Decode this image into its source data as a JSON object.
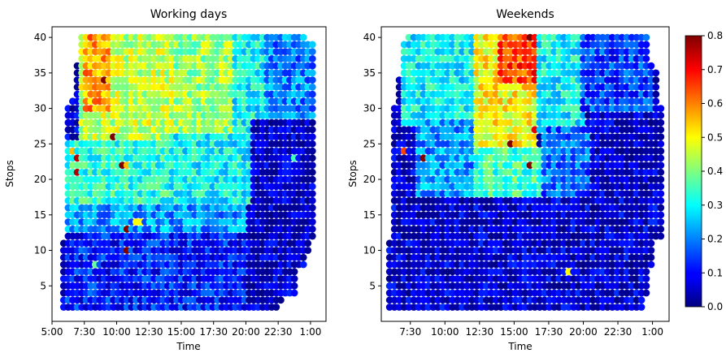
{
  "chart_data": [
    {
      "type": "scatter",
      "title": "Working days",
      "xlabel": "Time",
      "ylabel": "Stops",
      "x_ticks": [
        "5:00",
        "7:30",
        "10:00",
        "12:30",
        "15:00",
        "17:30",
        "20:00",
        "22:30",
        "1:00"
      ],
      "x_tick_hours": [
        5,
        7.5,
        10,
        12.5,
        15,
        17.5,
        20,
        22.5,
        25
      ],
      "xlim_hours": [
        5,
        26.2
      ],
      "y_ticks": [
        5,
        10,
        15,
        20,
        25,
        30,
        35,
        40
      ],
      "ylim": [
        0,
        41.5
      ],
      "point_grid": {
        "time_step_minutes": 30,
        "stop_step": 1
      },
      "columns": [
        {
          "t": 5.9,
          "stops": [
            2,
            11
          ]
        },
        {
          "t": 6.25,
          "stops": [
            2,
            30
          ]
        },
        {
          "t": 6.6,
          "stops": [
            2,
            31
          ]
        },
        {
          "t": 6.95,
          "stops": [
            2,
            36
          ]
        },
        {
          "t": 7.3,
          "stops": [
            2,
            40
          ]
        },
        {
          "t": 7.65,
          "stops": [
            2,
            40
          ]
        },
        {
          "t": 8.0,
          "stops": [
            2,
            40
          ]
        },
        {
          "t": 8.35,
          "stops": [
            2,
            40
          ]
        },
        {
          "t": 8.7,
          "stops": [
            2,
            40
          ]
        },
        {
          "t": 9.05,
          "stops": [
            2,
            40
          ]
        },
        {
          "t": 9.4,
          "stops": [
            2,
            40
          ]
        },
        {
          "t": 9.75,
          "stops": [
            2,
            40
          ]
        },
        {
          "t": 10.1,
          "stops": [
            2,
            40
          ]
        },
        {
          "t": 10.45,
          "stops": [
            2,
            40
          ]
        },
        {
          "t": 10.8,
          "stops": [
            2,
            40
          ]
        },
        {
          "t": 11.15,
          "stops": [
            2,
            40
          ]
        },
        {
          "t": 11.5,
          "stops": [
            2,
            40
          ]
        },
        {
          "t": 11.85,
          "stops": [
            2,
            40
          ]
        },
        {
          "t": 12.2,
          "stops": [
            2,
            40
          ]
        },
        {
          "t": 12.55,
          "stops": [
            2,
            40
          ]
        },
        {
          "t": 12.9,
          "stops": [
            2,
            40
          ]
        },
        {
          "t": 13.25,
          "stops": [
            2,
            40
          ]
        },
        {
          "t": 13.6,
          "stops": [
            2,
            40
          ]
        },
        {
          "t": 13.95,
          "stops": [
            2,
            40
          ]
        },
        {
          "t": 14.3,
          "stops": [
            2,
            40
          ]
        },
        {
          "t": 14.65,
          "stops": [
            2,
            40
          ]
        },
        {
          "t": 15.0,
          "stops": [
            2,
            40
          ]
        },
        {
          "t": 15.35,
          "stops": [
            2,
            40
          ]
        },
        {
          "t": 15.7,
          "stops": [
            2,
            40
          ]
        },
        {
          "t": 16.05,
          "stops": [
            2,
            40
          ]
        },
        {
          "t": 16.4,
          "stops": [
            2,
            40
          ]
        },
        {
          "t": 16.75,
          "stops": [
            2,
            40
          ]
        },
        {
          "t": 17.1,
          "stops": [
            2,
            40
          ]
        },
        {
          "t": 17.45,
          "stops": [
            2,
            40
          ]
        },
        {
          "t": 17.8,
          "stops": [
            2,
            40
          ]
        },
        {
          "t": 18.15,
          "stops": [
            2,
            40
          ]
        },
        {
          "t": 18.5,
          "stops": [
            2,
            40
          ]
        },
        {
          "t": 18.85,
          "stops": [
            2,
            40
          ]
        },
        {
          "t": 19.2,
          "stops": [
            2,
            40
          ]
        },
        {
          "t": 19.55,
          "stops": [
            2,
            40
          ]
        },
        {
          "t": 19.9,
          "stops": [
            2,
            40
          ]
        },
        {
          "t": 20.25,
          "stops": [
            2,
            40
          ]
        },
        {
          "t": 20.6,
          "stops": [
            2,
            40
          ]
        },
        {
          "t": 20.95,
          "stops": [
            2,
            40
          ]
        },
        {
          "t": 21.3,
          "stops": [
            2,
            40
          ]
        },
        {
          "t": 21.65,
          "stops": [
            2,
            40
          ]
        },
        {
          "t": 22.0,
          "stops": [
            2,
            40
          ]
        },
        {
          "t": 22.35,
          "stops": [
            2,
            40
          ]
        },
        {
          "t": 22.7,
          "stops": [
            3,
            40
          ]
        },
        {
          "t": 23.05,
          "stops": [
            4,
            40
          ]
        },
        {
          "t": 23.4,
          "stops": [
            4,
            40
          ]
        },
        {
          "t": 23.75,
          "stops": [
            4,
            40
          ]
        },
        {
          "t": 24.1,
          "stops": [
            8,
            40
          ]
        },
        {
          "t": 24.45,
          "stops": [
            8,
            40
          ]
        },
        {
          "t": 24.8,
          "stops": [
            10,
            39
          ]
        },
        {
          "t": 25.15,
          "stops": [
            12,
            39
          ]
        }
      ],
      "intensity_regions": [
        {
          "t": [
            7.0,
            14.5
          ],
          "stops": [
            25,
            40
          ],
          "value": 0.45
        },
        {
          "t": [
            14.5,
            19.0
          ],
          "stops": [
            26,
            40
          ],
          "value": 0.42
        },
        {
          "t": [
            19.0,
            21.5
          ],
          "stops": [
            26,
            40
          ],
          "value": 0.3
        },
        {
          "t": [
            21.5,
            25.3
          ],
          "stops": [
            28,
            40
          ],
          "value": 0.2
        },
        {
          "t": [
            7.5,
            9.5
          ],
          "stops": [
            30,
            40
          ],
          "value": 0.58
        },
        {
          "t": [
            6.0,
            14.0
          ],
          "stops": [
            16,
            25
          ],
          "value": 0.33
        },
        {
          "t": [
            14.0,
            20.5
          ],
          "stops": [
            17,
            26
          ],
          "value": 0.3
        },
        {
          "t": [
            6.0,
            20.0
          ],
          "stops": [
            12,
            16
          ],
          "value": 0.22
        },
        {
          "t": [
            6.0,
            20.0
          ],
          "stops": [
            2,
            12
          ],
          "value": 0.12
        },
        {
          "t": [
            20.5,
            25.3
          ],
          "stops": [
            2,
            28
          ],
          "value": 0.05
        }
      ],
      "highlights": [
        {
          "t": 6.6,
          "stop": 24,
          "value": 0.55
        },
        {
          "t": 6.95,
          "stop": 23,
          "value": 0.75
        },
        {
          "t": 6.95,
          "stop": 21,
          "value": 0.76
        },
        {
          "t": 8.35,
          "stop": 8,
          "value": 0.38
        },
        {
          "t": 9.05,
          "stop": 34,
          "value": 0.8
        },
        {
          "t": 9.75,
          "stop": 26,
          "value": 0.8
        },
        {
          "t": 10.45,
          "stop": 22,
          "value": 0.8
        },
        {
          "t": 10.8,
          "stop": 22,
          "value": 0.55
        },
        {
          "t": 10.8,
          "stop": 13,
          "value": 0.8
        },
        {
          "t": 10.8,
          "stop": 10,
          "value": 0.8
        },
        {
          "t": 11.5,
          "stop": 14,
          "value": 0.5
        },
        {
          "t": 11.85,
          "stop": 14,
          "value": 0.5
        },
        {
          "t": 23.75,
          "stop": 23,
          "value": 0.35
        }
      ],
      "colorscale": "jet"
    },
    {
      "type": "scatter",
      "title": "Weekends",
      "xlabel": "Time",
      "ylabel": "Stops",
      "x_ticks": [
        "7:30",
        "10:00",
        "12:30",
        "15:00",
        "17:30",
        "20:00",
        "22:30",
        "1:00"
      ],
      "x_tick_hours": [
        7.5,
        10,
        12.5,
        15,
        17.5,
        20,
        22.5,
        25
      ],
      "xlim_hours": [
        5.4,
        26.2
      ],
      "y_ticks": [
        5,
        10,
        15,
        20,
        25,
        30,
        35,
        40
      ],
      "ylim": [
        0,
        41.5
      ],
      "columns": [
        {
          "t": 6.0,
          "stops": [
            2,
            11
          ]
        },
        {
          "t": 6.35,
          "stops": [
            2,
            30
          ]
        },
        {
          "t": 6.7,
          "stops": [
            2,
            34
          ]
        },
        {
          "t": 7.05,
          "stops": [
            2,
            39
          ]
        },
        {
          "t": 7.4,
          "stops": [
            2,
            40
          ]
        },
        {
          "t": 7.75,
          "stops": [
            2,
            40
          ]
        },
        {
          "t": 8.1,
          "stops": [
            2,
            40
          ]
        },
        {
          "t": 8.45,
          "stops": [
            2,
            40
          ]
        },
        {
          "t": 8.8,
          "stops": [
            2,
            40
          ]
        },
        {
          "t": 9.15,
          "stops": [
            2,
            40
          ]
        },
        {
          "t": 9.5,
          "stops": [
            2,
            40
          ]
        },
        {
          "t": 9.85,
          "stops": [
            2,
            40
          ]
        },
        {
          "t": 10.2,
          "stops": [
            2,
            40
          ]
        },
        {
          "t": 10.55,
          "stops": [
            2,
            40
          ]
        },
        {
          "t": 10.9,
          "stops": [
            2,
            40
          ]
        },
        {
          "t": 11.25,
          "stops": [
            2,
            40
          ]
        },
        {
          "t": 11.6,
          "stops": [
            2,
            40
          ]
        },
        {
          "t": 11.95,
          "stops": [
            2,
            40
          ]
        },
        {
          "t": 12.3,
          "stops": [
            2,
            40
          ]
        },
        {
          "t": 12.65,
          "stops": [
            2,
            40
          ]
        },
        {
          "t": 13.0,
          "stops": [
            2,
            40
          ]
        },
        {
          "t": 13.35,
          "stops": [
            2,
            40
          ]
        },
        {
          "t": 13.7,
          "stops": [
            2,
            40
          ]
        },
        {
          "t": 14.05,
          "stops": [
            2,
            40
          ]
        },
        {
          "t": 14.4,
          "stops": [
            2,
            40
          ]
        },
        {
          "t": 14.75,
          "stops": [
            2,
            40
          ]
        },
        {
          "t": 15.1,
          "stops": [
            2,
            40
          ]
        },
        {
          "t": 15.45,
          "stops": [
            2,
            40
          ]
        },
        {
          "t": 15.8,
          "stops": [
            2,
            40
          ]
        },
        {
          "t": 16.15,
          "stops": [
            2,
            40
          ]
        },
        {
          "t": 16.5,
          "stops": [
            2,
            40
          ]
        },
        {
          "t": 16.85,
          "stops": [
            2,
            40
          ]
        },
        {
          "t": 17.2,
          "stops": [
            2,
            40
          ]
        },
        {
          "t": 17.55,
          "stops": [
            2,
            40
          ]
        },
        {
          "t": 17.9,
          "stops": [
            2,
            40
          ]
        },
        {
          "t": 18.25,
          "stops": [
            2,
            40
          ]
        },
        {
          "t": 18.6,
          "stops": [
            2,
            40
          ]
        },
        {
          "t": 18.95,
          "stops": [
            2,
            40
          ]
        },
        {
          "t": 19.3,
          "stops": [
            2,
            40
          ]
        },
        {
          "t": 19.65,
          "stops": [
            2,
            40
          ]
        },
        {
          "t": 20.0,
          "stops": [
            2,
            40
          ]
        },
        {
          "t": 20.35,
          "stops": [
            2,
            40
          ]
        },
        {
          "t": 20.7,
          "stops": [
            2,
            40
          ]
        },
        {
          "t": 21.05,
          "stops": [
            2,
            40
          ]
        },
        {
          "t": 21.4,
          "stops": [
            2,
            40
          ]
        },
        {
          "t": 21.75,
          "stops": [
            2,
            40
          ]
        },
        {
          "t": 22.1,
          "stops": [
            2,
            40
          ]
        },
        {
          "t": 22.45,
          "stops": [
            2,
            40
          ]
        },
        {
          "t": 22.8,
          "stops": [
            2,
            40
          ]
        },
        {
          "t": 23.15,
          "stops": [
            2,
            40
          ]
        },
        {
          "t": 23.5,
          "stops": [
            2,
            40
          ]
        },
        {
          "t": 23.85,
          "stops": [
            2,
            40
          ]
        },
        {
          "t": 24.2,
          "stops": [
            2,
            40
          ]
        },
        {
          "t": 24.55,
          "stops": [
            4,
            40
          ]
        },
        {
          "t": 24.9,
          "stops": [
            8,
            36
          ]
        },
        {
          "t": 25.25,
          "stops": [
            12,
            35
          ]
        },
        {
          "t": 25.6,
          "stops": [
            12,
            30
          ]
        }
      ],
      "intensity_regions": [
        {
          "t": [
            7.0,
            12.0
          ],
          "stops": [
            28,
            40
          ],
          "value": 0.3
        },
        {
          "t": [
            12.0,
            16.5
          ],
          "stops": [
            24,
            40
          ],
          "value": 0.5
        },
        {
          "t": [
            14.0,
            16.8
          ],
          "stops": [
            34,
            40
          ],
          "value": 0.65
        },
        {
          "t": [
            16.8,
            20.0
          ],
          "stops": [
            27,
            40
          ],
          "value": 0.3
        },
        {
          "t": [
            20.0,
            25.0
          ],
          "stops": [
            30,
            40
          ],
          "value": 0.15
        },
        {
          "t": [
            8.0,
            12.0
          ],
          "stops": [
            18,
            28
          ],
          "value": 0.22
        },
        {
          "t": [
            12.0,
            17.0
          ],
          "stops": [
            16,
            24
          ],
          "value": 0.35
        },
        {
          "t": [
            17.0,
            20.5
          ],
          "stops": [
            18,
            27
          ],
          "value": 0.18
        },
        {
          "t": [
            6.0,
            25.5
          ],
          "stops": [
            2,
            17
          ],
          "value": 0.06
        }
      ],
      "highlights": [
        {
          "t": 7.05,
          "stop": 24,
          "value": 0.65
        },
        {
          "t": 8.45,
          "stop": 23,
          "value": 0.8
        },
        {
          "t": 14.75,
          "stop": 25,
          "value": 0.8
        },
        {
          "t": 16.15,
          "stop": 22,
          "value": 0.8
        },
        {
          "t": 16.15,
          "stop": 40,
          "value": 0.8
        },
        {
          "t": 16.5,
          "stop": 34,
          "value": 0.72
        },
        {
          "t": 16.5,
          "stop": 27,
          "value": 0.72
        },
        {
          "t": 18.95,
          "stop": 7,
          "value": 0.5
        },
        {
          "t": 15.8,
          "stop": 38,
          "value": 0.68
        },
        {
          "t": 14.4,
          "stop": 37,
          "value": 0.62
        }
      ],
      "colorscale": "jet"
    }
  ],
  "colorbar": {
    "ticks": [
      0.0,
      0.1,
      0.2,
      0.3,
      0.4,
      0.5,
      0.6,
      0.7,
      0.8
    ],
    "tick_labels": [
      "0.0",
      "0.1",
      "0.2",
      "0.3",
      "0.4",
      "0.5",
      "0.6",
      "0.7",
      "0.8"
    ],
    "range": [
      0.0,
      0.8
    ],
    "colorscale": "jet"
  }
}
